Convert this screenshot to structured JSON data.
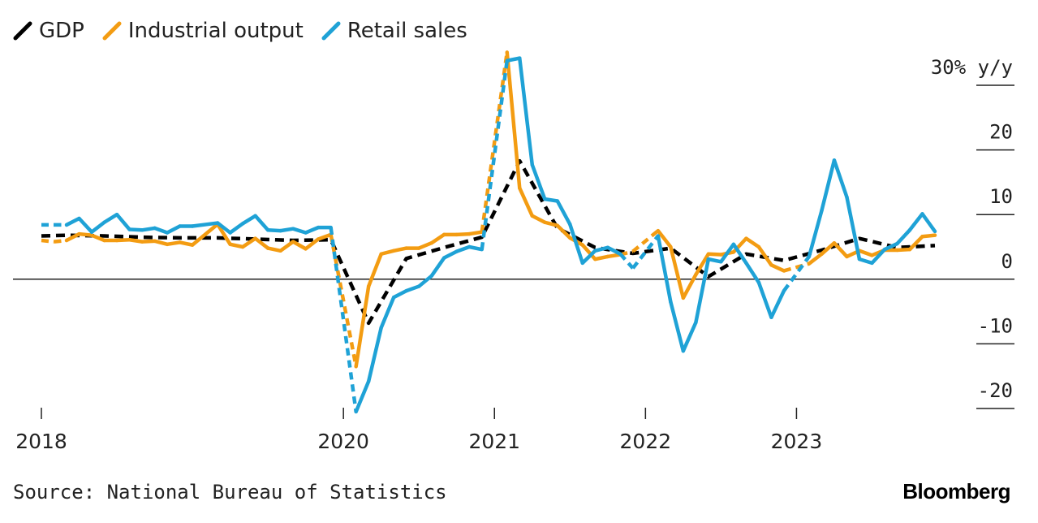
{
  "colors": {
    "GDP": "#000000",
    "Industrial output": "#f39c12",
    "Retail sales": "#1fa2d6"
  },
  "chart_data": {
    "type": "line",
    "unit_label": "30% y/y",
    "ylim": [
      -20,
      30
    ],
    "yticks": [
      30,
      20,
      10,
      0,
      -10,
      -20
    ],
    "ytick_labels": [
      "30% y/y",
      "20",
      "10",
      "0",
      "-10",
      "-20"
    ],
    "xticks": [
      {
        "label": "2018",
        "x": "2018-01"
      },
      {
        "label": "2020",
        "x": "2020-01"
      },
      {
        "label": "2021",
        "x": "2021-01"
      },
      {
        "label": "2022",
        "x": "2022-01"
      },
      {
        "label": "2023",
        "x": "2023-01"
      }
    ],
    "x_range": [
      "2018-01",
      "2023-12"
    ],
    "legend_position": "top-left",
    "series": [
      {
        "name": "GDP",
        "color": "#000000",
        "style": "dashed",
        "points": [
          [
            "2018-01",
            6.7
          ],
          [
            "2018-03",
            6.8
          ],
          [
            "2018-06",
            6.7
          ],
          [
            "2018-09",
            6.5
          ],
          [
            "2018-12",
            6.4
          ],
          [
            "2019-03",
            6.4
          ],
          [
            "2019-06",
            6.2
          ],
          [
            "2019-09",
            6.0
          ],
          [
            "2019-12",
            6.1
          ],
          [
            "2020-03",
            -6.8
          ],
          [
            "2020-06",
            3.2
          ],
          [
            "2020-09",
            4.9
          ],
          [
            "2020-12",
            6.5
          ],
          [
            "2021-03",
            18.3
          ],
          [
            "2021-06",
            7.9
          ],
          [
            "2021-09",
            4.9
          ],
          [
            "2021-12",
            4.0
          ],
          [
            "2022-03",
            4.8
          ],
          [
            "2022-06",
            0.4
          ],
          [
            "2022-09",
            3.9
          ],
          [
            "2022-12",
            2.9
          ],
          [
            "2023-03",
            4.5
          ],
          [
            "2023-06",
            6.3
          ],
          [
            "2023-09",
            4.9
          ],
          [
            "2023-12",
            5.2
          ]
        ]
      },
      {
        "name": "Industrial output",
        "color": "#f39c12",
        "dashed_ranges": [
          [
            "2018-01",
            "2018-03"
          ],
          [
            "2019-12",
            "2020-02"
          ],
          [
            "2020-12",
            "2021-02"
          ],
          [
            "2021-11",
            "2022-02"
          ],
          [
            "2022-12",
            "2023-02"
          ]
        ],
        "points": [
          [
            "2018-01",
            6.0
          ],
          [
            "2018-02",
            5.8
          ],
          [
            "2018-03",
            6.0
          ],
          [
            "2018-04",
            7.0
          ],
          [
            "2018-05",
            6.8
          ],
          [
            "2018-06",
            6.0
          ],
          [
            "2018-07",
            6.0
          ],
          [
            "2018-08",
            6.1
          ],
          [
            "2018-09",
            5.8
          ],
          [
            "2018-10",
            5.9
          ],
          [
            "2018-11",
            5.4
          ],
          [
            "2018-12",
            5.7
          ],
          [
            "2019-01",
            5.3
          ],
          [
            "2019-03",
            8.5
          ],
          [
            "2019-04",
            5.4
          ],
          [
            "2019-05",
            5.0
          ],
          [
            "2019-06",
            6.3
          ],
          [
            "2019-07",
            4.8
          ],
          [
            "2019-08",
            4.4
          ],
          [
            "2019-09",
            5.8
          ],
          [
            "2019-10",
            4.7
          ],
          [
            "2019-11",
            6.2
          ],
          [
            "2019-12",
            6.9
          ],
          [
            "2020-02",
            -13.5
          ],
          [
            "2020-03",
            -1.1
          ],
          [
            "2020-04",
            3.9
          ],
          [
            "2020-05",
            4.4
          ],
          [
            "2020-06",
            4.8
          ],
          [
            "2020-07",
            4.8
          ],
          [
            "2020-08",
            5.6
          ],
          [
            "2020-09",
            6.9
          ],
          [
            "2020-10",
            6.9
          ],
          [
            "2020-11",
            7.0
          ],
          [
            "2020-12",
            7.3
          ],
          [
            "2021-02",
            35.1
          ],
          [
            "2021-03",
            14.1
          ],
          [
            "2021-04",
            9.8
          ],
          [
            "2021-05",
            8.8
          ],
          [
            "2021-06",
            8.3
          ],
          [
            "2021-07",
            6.4
          ],
          [
            "2021-08",
            5.3
          ],
          [
            "2021-09",
            3.1
          ],
          [
            "2021-10",
            3.5
          ],
          [
            "2021-11",
            3.8
          ],
          [
            "2021-12",
            4.3
          ],
          [
            "2022-02",
            7.5
          ],
          [
            "2022-03",
            5.0
          ],
          [
            "2022-04",
            -2.9
          ],
          [
            "2022-05",
            0.7
          ],
          [
            "2022-06",
            3.9
          ],
          [
            "2022-07",
            3.8
          ],
          [
            "2022-08",
            4.2
          ],
          [
            "2022-09",
            6.3
          ],
          [
            "2022-10",
            5.0
          ],
          [
            "2022-11",
            2.2
          ],
          [
            "2022-12",
            1.3
          ],
          [
            "2023-02",
            2.4
          ],
          [
            "2023-03",
            3.9
          ],
          [
            "2023-04",
            5.6
          ],
          [
            "2023-05",
            3.5
          ],
          [
            "2023-06",
            4.4
          ],
          [
            "2023-07",
            3.7
          ],
          [
            "2023-08",
            4.5
          ],
          [
            "2023-09",
            4.5
          ],
          [
            "2023-10",
            4.6
          ],
          [
            "2023-11",
            6.6
          ],
          [
            "2023-12",
            6.8
          ]
        ]
      },
      {
        "name": "Retail sales",
        "color": "#1fa2d6",
        "dashed_ranges": [
          [
            "2018-01",
            "2018-03"
          ],
          [
            "2019-12",
            "2020-02"
          ],
          [
            "2020-12",
            "2021-02"
          ],
          [
            "2021-11",
            "2022-02"
          ],
          [
            "2022-12",
            "2023-02"
          ]
        ],
        "points": [
          [
            "2018-01",
            8.4
          ],
          [
            "2018-02",
            8.4
          ],
          [
            "2018-03",
            8.4
          ],
          [
            "2018-04",
            9.4
          ],
          [
            "2018-05",
            7.3
          ],
          [
            "2018-06",
            8.8
          ],
          [
            "2018-07",
            10.0
          ],
          [
            "2018-08",
            7.7
          ],
          [
            "2018-09",
            7.6
          ],
          [
            "2018-10",
            7.9
          ],
          [
            "2018-11",
            7.2
          ],
          [
            "2018-12",
            8.2
          ],
          [
            "2019-01",
            8.2
          ],
          [
            "2019-03",
            8.7
          ],
          [
            "2019-04",
            7.2
          ],
          [
            "2019-05",
            8.6
          ],
          [
            "2019-06",
            9.8
          ],
          [
            "2019-07",
            7.6
          ],
          [
            "2019-08",
            7.5
          ],
          [
            "2019-09",
            7.8
          ],
          [
            "2019-10",
            7.2
          ],
          [
            "2019-11",
            8.0
          ],
          [
            "2019-12",
            8.0
          ],
          [
            "2020-02",
            -20.5
          ],
          [
            "2020-03",
            -15.8
          ],
          [
            "2020-04",
            -7.5
          ],
          [
            "2020-05",
            -2.8
          ],
          [
            "2020-06",
            -1.8
          ],
          [
            "2020-07",
            -1.1
          ],
          [
            "2020-08",
            0.5
          ],
          [
            "2020-09",
            3.3
          ],
          [
            "2020-10",
            4.3
          ],
          [
            "2020-11",
            5.0
          ],
          [
            "2020-12",
            4.6
          ],
          [
            "2021-02",
            33.8
          ],
          [
            "2021-03",
            34.2
          ],
          [
            "2021-04",
            17.7
          ],
          [
            "2021-05",
            12.4
          ],
          [
            "2021-06",
            12.1
          ],
          [
            "2021-07",
            8.5
          ],
          [
            "2021-08",
            2.5
          ],
          [
            "2021-09",
            4.4
          ],
          [
            "2021-10",
            4.9
          ],
          [
            "2021-11",
            3.9
          ],
          [
            "2021-12",
            1.7
          ],
          [
            "2022-02",
            6.7
          ],
          [
            "2022-03",
            -3.5
          ],
          [
            "2022-04",
            -11.1
          ],
          [
            "2022-05",
            -6.7
          ],
          [
            "2022-06",
            3.1
          ],
          [
            "2022-07",
            2.7
          ],
          [
            "2022-08",
            5.4
          ],
          [
            "2022-09",
            2.5
          ],
          [
            "2022-10",
            -0.5
          ],
          [
            "2022-11",
            -5.9
          ],
          [
            "2022-12",
            -1.8
          ],
          [
            "2023-02",
            3.5
          ],
          [
            "2023-03",
            10.6
          ],
          [
            "2023-04",
            18.4
          ],
          [
            "2023-05",
            12.7
          ],
          [
            "2023-06",
            3.1
          ],
          [
            "2023-07",
            2.5
          ],
          [
            "2023-08",
            4.6
          ],
          [
            "2023-09",
            5.5
          ],
          [
            "2023-10",
            7.6
          ],
          [
            "2023-11",
            10.1
          ],
          [
            "2023-12",
            7.4
          ]
        ]
      }
    ]
  },
  "footer": {
    "source": "Source: National Bureau of Statistics",
    "brand": "Bloomberg"
  }
}
